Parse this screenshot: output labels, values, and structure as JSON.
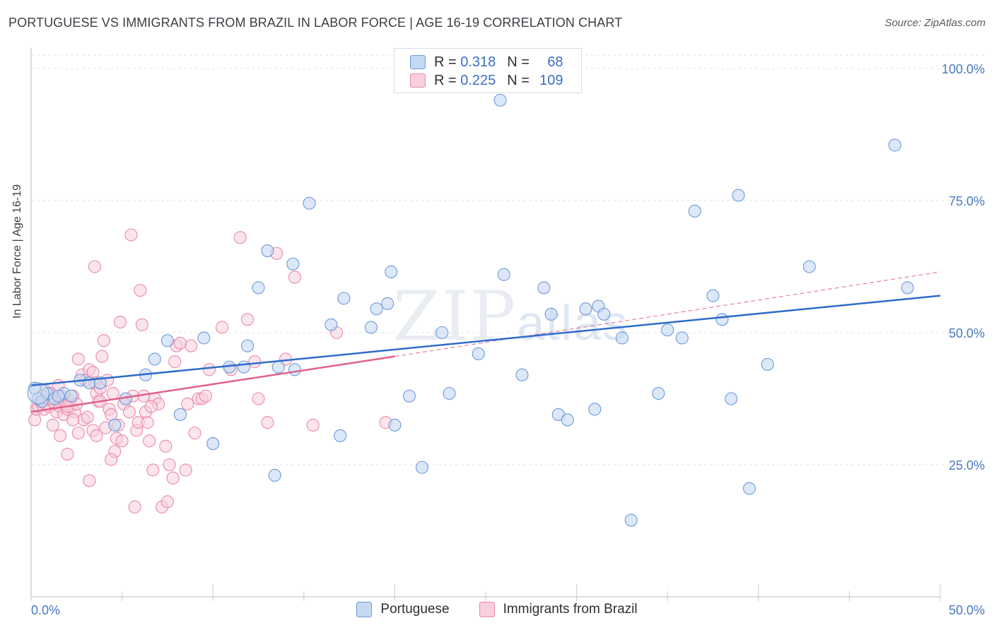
{
  "header": {
    "title": "PORTUGUESE VS IMMIGRANTS FROM BRAZIL IN LABOR FORCE | AGE 16-19 CORRELATION CHART",
    "source": "Source: ZipAtlas.com"
  },
  "watermark": {
    "zip": "ZIP",
    "atlas": "atlas"
  },
  "legend_top": {
    "rows": [
      {
        "r_label": "R =",
        "r_value": "0.318",
        "n_label": "N =",
        "n_value": "68",
        "color": "#9bbde8"
      },
      {
        "r_label": "R =",
        "r_value": "0.225",
        "n_label": "N =",
        "n_value": "109",
        "color": "#f3a9c0"
      }
    ]
  },
  "legend_bottom": {
    "items": [
      {
        "label": "Portuguese",
        "color": "#9bbde8"
      },
      {
        "label": "Immigrants from Brazil",
        "color": "#f3a9c0"
      }
    ]
  },
  "colors": {
    "blue_fill": "#c5d9f2",
    "blue_stroke": "#6d9ad8",
    "blue_line": "#2f6ccc",
    "pink_fill": "#f8cfdc",
    "pink_stroke": "#e98aa8",
    "pink_line": "#e0608a",
    "tick_color": "#4a78c2",
    "grid": "#dfe3e8"
  },
  "chart_data": {
    "type": "scatter",
    "title": "PORTUGUESE VS IMMIGRANTS FROM BRAZIL IN LABOR FORCE | AGE 16-19 CORRELATION CHART",
    "xlabel": "",
    "ylabel": "In Labor Force | Age 16-19",
    "xlim": [
      0,
      50
    ],
    "ylim": [
      0,
      102
    ],
    "x_tick_labels": [
      "0.0%",
      "50.0%"
    ],
    "y_tick_values": [
      25,
      50,
      75,
      100
    ],
    "y_tick_labels": [
      "25.0%",
      "50.0%",
      "75.0%",
      "100.0%"
    ],
    "grid": true,
    "legend_position": "top-center",
    "series": [
      {
        "name": "Portuguese",
        "R": 0.318,
        "N": 68,
        "trend": {
          "x": [
            0,
            50
          ],
          "y": [
            40.0,
            57.0
          ]
        },
        "points": [
          [
            0.2,
            39.5
          ],
          [
            0.4,
            37.5
          ],
          [
            0.6,
            37.0
          ],
          [
            0.9,
            38.5
          ],
          [
            1.3,
            37.5
          ],
          [
            1.8,
            38.5
          ],
          [
            1.5,
            38.0
          ],
          [
            2.2,
            38.0
          ],
          [
            2.7,
            41.0
          ],
          [
            3.2,
            40.5
          ],
          [
            3.8,
            40.5
          ],
          [
            5.2,
            37.5
          ],
          [
            4.6,
            32.5
          ],
          [
            6.3,
            42.0
          ],
          [
            6.8,
            45.0
          ],
          [
            7.5,
            48.5
          ],
          [
            8.2,
            34.5
          ],
          [
            9.5,
            49.0
          ],
          [
            10.0,
            29.0
          ],
          [
            10.9,
            43.5
          ],
          [
            11.7,
            43.5
          ],
          [
            11.9,
            47.5
          ],
          [
            12.5,
            58.5
          ],
          [
            13.0,
            65.5
          ],
          [
            13.6,
            43.5
          ],
          [
            14.5,
            43.0
          ],
          [
            14.4,
            63.0
          ],
          [
            15.3,
            74.5
          ],
          [
            16.5,
            51.5
          ],
          [
            17.0,
            30.5
          ],
          [
            17.2,
            56.5
          ],
          [
            18.7,
            51.0
          ],
          [
            19.0,
            54.5
          ],
          [
            19.6,
            55.5
          ],
          [
            19.8,
            61.5
          ],
          [
            20.0,
            32.5
          ],
          [
            20.8,
            38.0
          ],
          [
            21.5,
            24.5
          ],
          [
            22.6,
            50.0
          ],
          [
            23.0,
            38.5
          ],
          [
            24.6,
            46.0
          ],
          [
            26.0,
            61.0
          ],
          [
            27.0,
            42.0
          ],
          [
            28.2,
            58.5
          ],
          [
            28.6,
            53.5
          ],
          [
            29.0,
            34.5
          ],
          [
            29.5,
            33.5
          ],
          [
            30.5,
            54.5
          ],
          [
            31.0,
            35.5
          ],
          [
            31.2,
            55.0
          ],
          [
            31.5,
            53.5
          ],
          [
            32.5,
            49.0
          ],
          [
            33.0,
            14.5
          ],
          [
            34.5,
            38.5
          ],
          [
            35.0,
            50.5
          ],
          [
            35.8,
            49.0
          ],
          [
            36.5,
            73.0
          ],
          [
            37.5,
            57.0
          ],
          [
            38.0,
            52.5
          ],
          [
            38.5,
            37.5
          ],
          [
            38.9,
            76.0
          ],
          [
            39.5,
            20.5
          ],
          [
            40.5,
            44.0
          ],
          [
            42.8,
            62.5
          ],
          [
            47.5,
            85.5
          ],
          [
            48.2,
            58.5
          ],
          [
            13.4,
            23.0
          ],
          [
            25.8,
            94.0
          ]
        ]
      },
      {
        "name": "Immigrants from Brazil",
        "R": 0.225,
        "N": 109,
        "trend": {
          "x": [
            0,
            20
          ],
          "y": [
            35.0,
            45.5
          ]
        },
        "trend_extension": {
          "x": [
            20,
            50
          ],
          "y": [
            45.5,
            61.5
          ]
        },
        "points": [
          [
            0.2,
            33.5
          ],
          [
            0.3,
            35.5
          ],
          [
            0.4,
            36.0
          ],
          [
            0.5,
            37.0
          ],
          [
            0.6,
            38.0
          ],
          [
            0.7,
            35.5
          ],
          [
            0.8,
            36.5
          ],
          [
            0.9,
            37.5
          ],
          [
            1.0,
            36.0
          ],
          [
            1.1,
            38.5
          ],
          [
            1.2,
            37.0
          ],
          [
            1.3,
            36.5
          ],
          [
            1.4,
            35.0
          ],
          [
            1.5,
            37.5
          ],
          [
            1.6,
            36.0
          ],
          [
            1.7,
            38.0
          ],
          [
            1.8,
            34.5
          ],
          [
            1.9,
            36.5
          ],
          [
            2.0,
            35.5
          ],
          [
            2.1,
            37.0
          ],
          [
            2.2,
            36.0
          ],
          [
            2.3,
            38.0
          ],
          [
            2.4,
            35.0
          ],
          [
            2.5,
            36.5
          ],
          [
            1.2,
            32.5
          ],
          [
            1.6,
            30.5
          ],
          [
            2.0,
            27.0
          ],
          [
            2.6,
            31.0
          ],
          [
            2.8,
            42.0
          ],
          [
            3.0,
            41.0
          ],
          [
            3.2,
            43.0
          ],
          [
            3.4,
            42.5
          ],
          [
            3.5,
            40.5
          ],
          [
            3.6,
            38.5
          ],
          [
            3.7,
            37.0
          ],
          [
            3.8,
            39.5
          ],
          [
            2.6,
            45.0
          ],
          [
            2.9,
            33.5
          ],
          [
            3.1,
            34.0
          ],
          [
            3.4,
            31.5
          ],
          [
            3.6,
            30.5
          ],
          [
            3.2,
            22.0
          ],
          [
            3.5,
            62.5
          ],
          [
            3.9,
            45.5
          ],
          [
            4.0,
            48.5
          ],
          [
            4.2,
            41.0
          ],
          [
            4.3,
            35.5
          ],
          [
            4.4,
            34.5
          ],
          [
            4.5,
            38.5
          ],
          [
            4.6,
            27.5
          ],
          [
            4.7,
            30.0
          ],
          [
            4.8,
            32.5
          ],
          [
            4.9,
            52.0
          ],
          [
            5.0,
            29.5
          ],
          [
            5.1,
            36.5
          ],
          [
            5.2,
            37.5
          ],
          [
            5.4,
            35.0
          ],
          [
            5.5,
            68.5
          ],
          [
            5.6,
            38.0
          ],
          [
            5.8,
            31.5
          ],
          [
            5.9,
            33.0
          ],
          [
            6.0,
            58.0
          ],
          [
            6.1,
            51.5
          ],
          [
            6.2,
            38.0
          ],
          [
            6.3,
            35.0
          ],
          [
            6.4,
            33.0
          ],
          [
            6.5,
            29.5
          ],
          [
            6.7,
            24.0
          ],
          [
            6.8,
            37.5
          ],
          [
            7.0,
            36.5
          ],
          [
            7.2,
            17.0
          ],
          [
            7.4,
            28.5
          ],
          [
            7.6,
            25.0
          ],
          [
            7.8,
            22.5
          ],
          [
            7.9,
            44.5
          ],
          [
            8.0,
            47.5
          ],
          [
            8.2,
            48.0
          ],
          [
            8.5,
            24.0
          ],
          [
            8.8,
            47.5
          ],
          [
            9.0,
            31.0
          ],
          [
            9.2,
            37.5
          ],
          [
            9.4,
            37.5
          ],
          [
            9.8,
            43.0
          ],
          [
            10.5,
            51.0
          ],
          [
            11.0,
            43.0
          ],
          [
            11.5,
            68.0
          ],
          [
            11.9,
            52.5
          ],
          [
            12.3,
            44.5
          ],
          [
            12.5,
            37.5
          ],
          [
            13.5,
            65.0
          ],
          [
            13.0,
            33.0
          ],
          [
            14.0,
            45.0
          ],
          [
            14.5,
            60.5
          ],
          [
            15.5,
            32.5
          ],
          [
            16.8,
            50.0
          ],
          [
            19.5,
            33.0
          ],
          [
            5.7,
            17.0
          ],
          [
            4.4,
            26.0
          ],
          [
            2.0,
            36.0
          ],
          [
            1.0,
            37.5
          ],
          [
            7.5,
            18.0
          ],
          [
            6.6,
            36.0
          ],
          [
            8.6,
            36.5
          ],
          [
            3.8,
            37.0
          ],
          [
            4.1,
            32.0
          ],
          [
            2.3,
            33.5
          ],
          [
            1.5,
            40.0
          ],
          [
            0.8,
            39.0
          ],
          [
            9.6,
            38.0
          ]
        ]
      }
    ]
  }
}
